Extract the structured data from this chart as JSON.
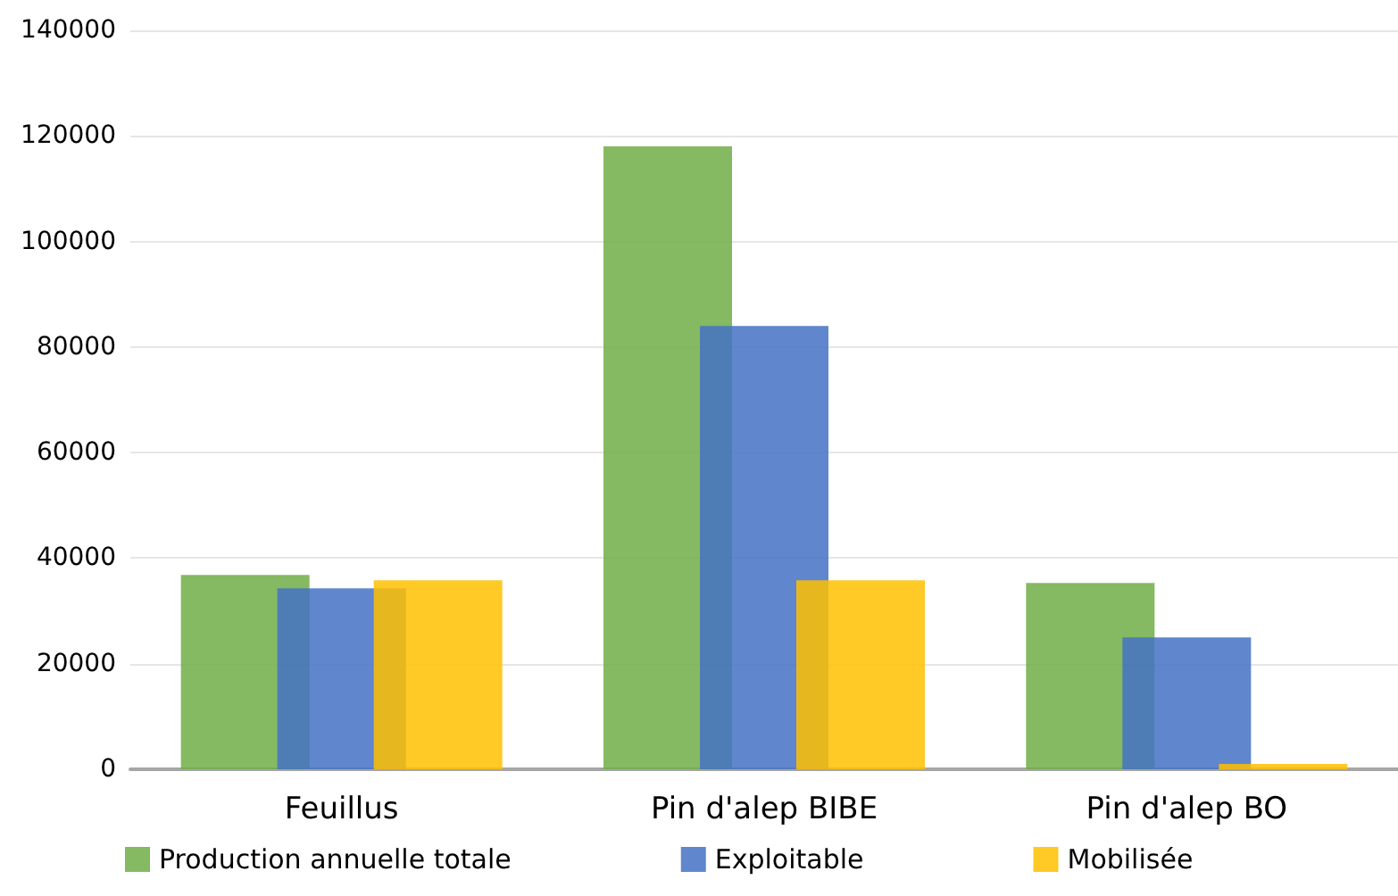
{
  "chart_data": {
    "type": "bar",
    "categories": [
      "Feuillus",
      "Pin d'alep BIBE",
      "Pin d'alep BO"
    ],
    "series": [
      {
        "name": "Production annuelle totale",
        "color": "#70ad47",
        "values": [
          36800,
          118000,
          35300
        ]
      },
      {
        "name": "Exploitable",
        "color": "#4472c4",
        "values": [
          34300,
          84000,
          25000
        ]
      },
      {
        "name": "Mobilisée",
        "color": "#ffc000",
        "values": [
          35800,
          35800,
          1000
        ]
      }
    ],
    "ylim": [
      0,
      140000
    ],
    "yticks": [
      0,
      20000,
      40000,
      60000,
      80000,
      100000,
      120000,
      140000
    ],
    "grid": "y",
    "legend": "bottom"
  }
}
